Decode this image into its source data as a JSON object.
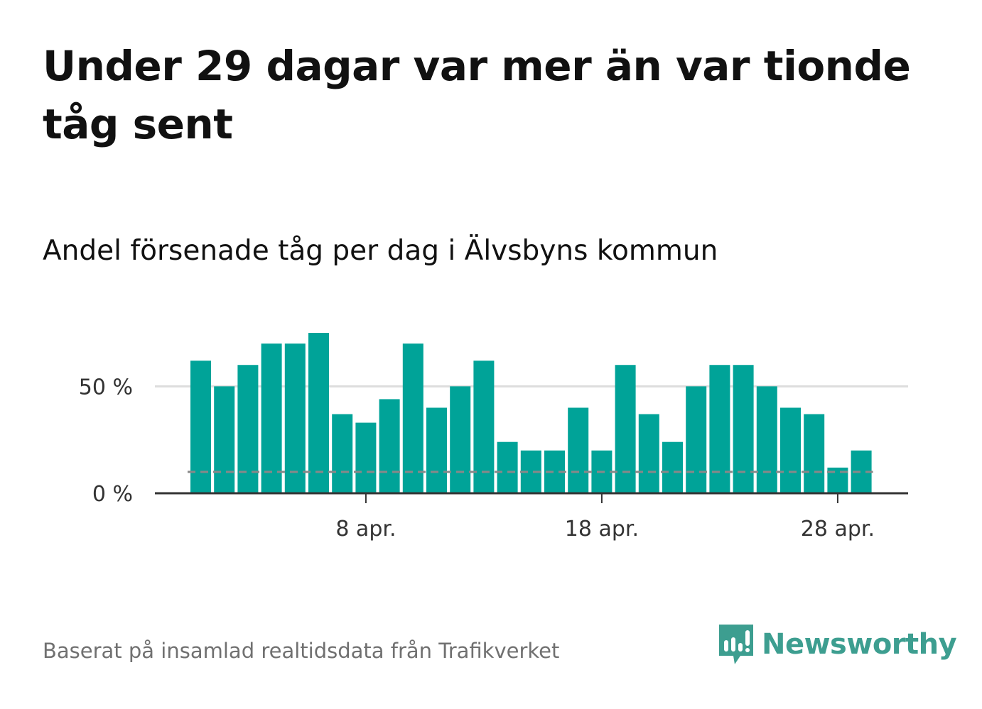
{
  "title": "Under 29 dagar var mer än var tionde tåg sent",
  "subtitle": "Andel försenade tåg per dag i Älvsbyns kommun",
  "source": "Baserat på insamlad realtidsdata från Trafikverket",
  "brand": {
    "name": "Newsworthy",
    "color": "#3d9e90",
    "icon": "bar-chart-speech-bubble-icon"
  },
  "colors": {
    "bar": "#00a398",
    "reference_line": "#888888",
    "grid": "#dddddd",
    "axis": "#333333"
  },
  "chart_data": {
    "type": "bar",
    "x_start_day": 1,
    "x_month_label": "apr.",
    "x_ticks": [
      {
        "day": 8,
        "label": "8 apr."
      },
      {
        "day": 18,
        "label": "18 apr."
      },
      {
        "day": 28,
        "label": "28 apr."
      }
    ],
    "y_ticks": [
      {
        "value": 0,
        "label": "0 %"
      },
      {
        "value": 50,
        "label": "50 %"
      }
    ],
    "ylim": [
      0,
      78
    ],
    "reference_line": {
      "value": 10,
      "style": "dashed"
    },
    "grid": true,
    "values": [
      62,
      50,
      60,
      70,
      70,
      75,
      37,
      33,
      44,
      70,
      40,
      50,
      62,
      24,
      20,
      20,
      40,
      20,
      60,
      37,
      24,
      50,
      60,
      60,
      50,
      40,
      37,
      12,
      20
    ]
  }
}
